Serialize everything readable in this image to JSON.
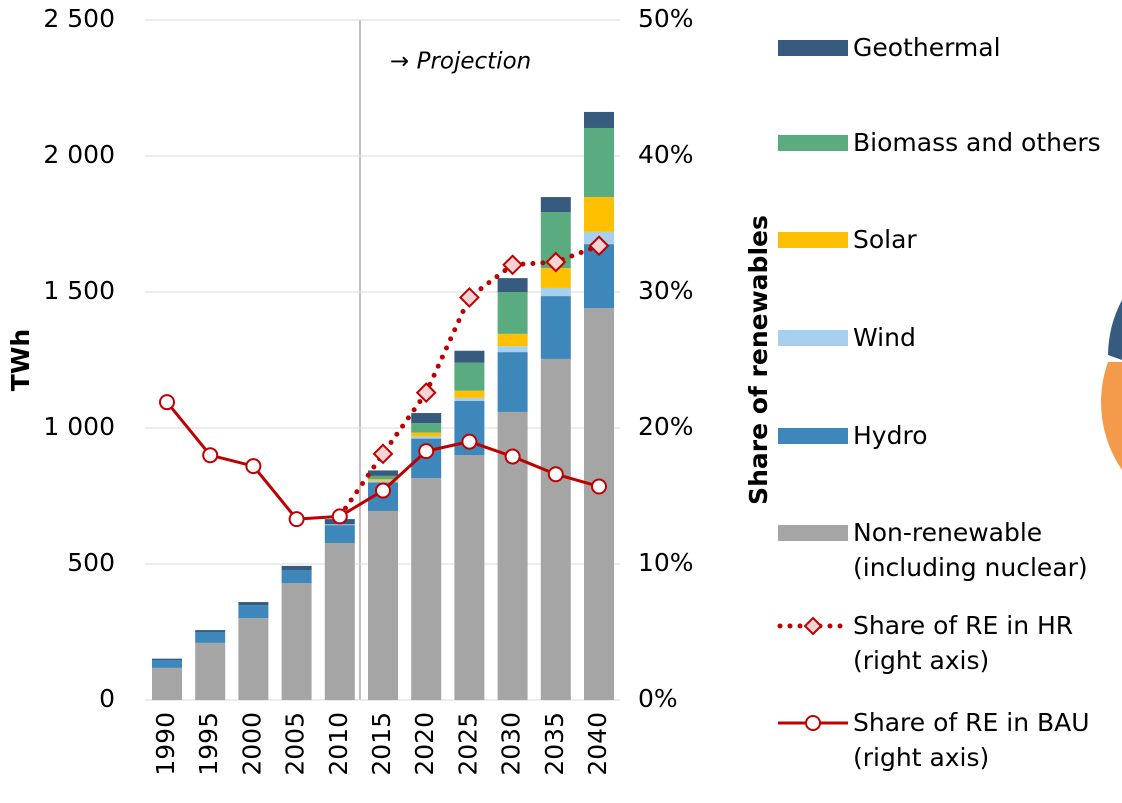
{
  "chart_data": {
    "type": "stacked_bar_line",
    "ylabel": "TWh",
    "y2label": "Share of renewables",
    "annotation": "→ Projection",
    "categories": [
      "1990",
      "1995",
      "2000",
      "2005",
      "2010",
      "2015",
      "2020",
      "2025",
      "2030",
      "2035",
      "2040"
    ],
    "ylim": [
      0,
      2500
    ],
    "yticks": [
      0,
      500,
      {
        "value": 1000,
        "label": "1 000"
      },
      {
        "value": 1500,
        "label": "1 500"
      },
      {
        "value": 2000,
        "label": "2 000"
      },
      {
        "value": 2500,
        "label": "2 500"
      }
    ],
    "y2lim": [
      0,
      50
    ],
    "y2ticks": [
      {
        "value": 0,
        "label": "0%"
      },
      {
        "value": 10,
        "label": "10%"
      },
      {
        "value": 20,
        "label": "20%"
      },
      {
        "value": 30,
        "label": "30%"
      },
      {
        "value": 40,
        "label": "40%"
      },
      {
        "value": 50,
        "label": "50%"
      }
    ],
    "grid": true,
    "series": [
      {
        "name": "Non-renewable (including nuclear)",
        "color": "#a5a5a5",
        "values": [
          118,
          210,
          301,
          430,
          577,
          695,
          816,
          900,
          1059,
          1254,
          1441
        ]
      },
      {
        "name": "Hydro",
        "color": "#3e87bb",
        "values": [
          29,
          40,
          48,
          48,
          66,
          105,
          145,
          200,
          220,
          231,
          235
        ]
      },
      {
        "name": "Wind",
        "color": "#a9cfef",
        "values": [
          0,
          0,
          0,
          0,
          3,
          6,
          8,
          11,
          22,
          30,
          45
        ]
      },
      {
        "name": "Solar",
        "color": "#ffc000",
        "values": [
          0,
          0,
          0,
          0,
          0,
          6,
          14,
          26,
          45,
          73,
          128
        ]
      },
      {
        "name": "Biomass and others",
        "color": "#5aac80",
        "values": [
          0,
          0,
          0,
          0,
          0,
          12,
          35,
          103,
          154,
          206,
          254
        ]
      },
      {
        "name": "Geothermal",
        "color": "#375a7f",
        "values": [
          5,
          7,
          11,
          15,
          19,
          20,
          37,
          44,
          51,
          55,
          59
        ]
      },
      {
        "name": "Share of RE in HR (right axis)",
        "color": "#c00000",
        "axis": "y2",
        "values": [
          null,
          null,
          null,
          null,
          13.5,
          18.1,
          22.6,
          29.6,
          32.0,
          32.2,
          33.4
        ]
      },
      {
        "name": "Share of RE in BAU (right axis)",
        "color": "#c00000",
        "axis": "y2",
        "values": [
          21.9,
          18.0,
          17.2,
          13.3,
          13.5,
          15.4,
          18.3,
          19.0,
          17.9,
          16.6,
          15.7
        ]
      }
    ]
  }
}
